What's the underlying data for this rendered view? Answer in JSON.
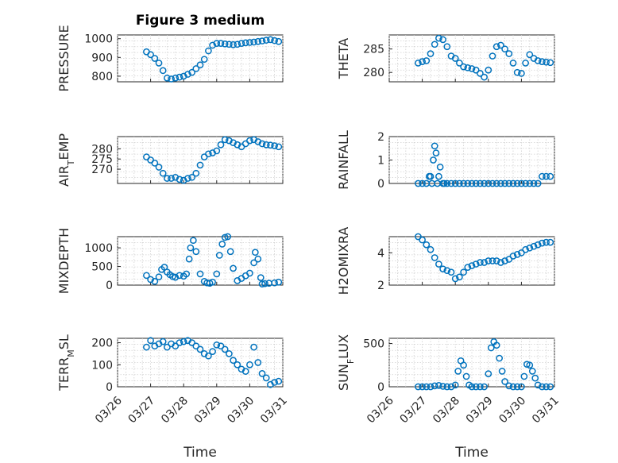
{
  "figure": {
    "title": "Figure 3 medium"
  },
  "xaxis": {
    "label": "Time",
    "ticks": [
      "03/26",
      "03/27",
      "03/28",
      "03/29",
      "03/30",
      "03/31"
    ],
    "range_days": [
      26,
      31
    ]
  },
  "colors": {
    "marker": "#0072BD",
    "grid": "#d0d0d0",
    "axes": "#262626"
  },
  "chart_data": [
    {
      "type": "scatter",
      "marker": "circle",
      "ylabel": "PRESSURE",
      "ylim": [
        770,
        1020
      ],
      "yticks": [
        800,
        900,
        1000
      ],
      "grid": true,
      "x": [
        "03/26 21:00",
        "03/27 00:00",
        "03/27 03:00",
        "03/27 06:00",
        "03/27 09:00",
        "03/27 12:00",
        "03/27 15:00",
        "03/27 18:00",
        "03/27 21:00",
        "03/28 00:00",
        "03/28 03:00",
        "03/28 06:00",
        "03/28 09:00",
        "03/28 12:00",
        "03/28 15:00",
        "03/28 18:00",
        "03/28 21:00",
        "03/29 00:00",
        "03/29 03:00",
        "03/29 06:00",
        "03/29 09:00",
        "03/29 12:00",
        "03/29 15:00",
        "03/29 18:00",
        "03/29 21:00",
        "03/30 00:00",
        "03/30 03:00",
        "03/30 06:00",
        "03/30 09:00",
        "03/30 12:00",
        "03/30 15:00",
        "03/30 18:00",
        "03/30 21:00"
      ],
      "y": [
        930,
        915,
        895,
        870,
        830,
        790,
        785,
        790,
        795,
        800,
        810,
        820,
        840,
        860,
        890,
        935,
        965,
        975,
        975,
        972,
        970,
        968,
        970,
        975,
        978,
        980,
        982,
        985,
        988,
        992,
        995,
        990,
        985
      ]
    },
    {
      "type": "scatter",
      "marker": "circle",
      "ylabel": "THETA",
      "ylim": [
        278,
        288
      ],
      "yticks": [
        280,
        285
      ],
      "grid": true,
      "x": [
        "03/26 21:00",
        "03/27 00:00",
        "03/27 03:00",
        "03/27 06:00",
        "03/27 09:00",
        "03/27 12:00",
        "03/27 15:00",
        "03/27 18:00",
        "03/27 21:00",
        "03/28 00:00",
        "03/28 03:00",
        "03/28 06:00",
        "03/28 09:00",
        "03/28 12:00",
        "03/28 15:00",
        "03/28 18:00",
        "03/28 21:00",
        "03/29 00:00",
        "03/29 03:00",
        "03/29 06:00",
        "03/29 09:00",
        "03/29 12:00",
        "03/29 15:00",
        "03/29 18:00",
        "03/29 21:00",
        "03/30 00:00",
        "03/30 03:00",
        "03/30 06:00",
        "03/30 09:00",
        "03/30 12:00",
        "03/30 15:00",
        "03/30 18:00",
        "03/30 21:00"
      ],
      "y": [
        282,
        282.3,
        282.5,
        284,
        286,
        287.3,
        287,
        285.5,
        283.5,
        283,
        282,
        281.2,
        281,
        280.8,
        280.5,
        279.8,
        279,
        280.5,
        283.5,
        285.5,
        285.8,
        285,
        284,
        282,
        280,
        279.8,
        282,
        283.8,
        283,
        282.5,
        282.3,
        282.2,
        282.1
      ]
    },
    {
      "type": "scatter",
      "marker": "circle",
      "ylabel": "AIR_TEMP",
      "ylim": [
        263,
        286
      ],
      "yticks": [
        270,
        275,
        280
      ],
      "grid": true,
      "x": [
        "03/26 21:00",
        "03/27 00:00",
        "03/27 03:00",
        "03/27 06:00",
        "03/27 09:00",
        "03/27 12:00",
        "03/27 15:00",
        "03/27 18:00",
        "03/27 21:00",
        "03/28 00:00",
        "03/28 03:00",
        "03/28 06:00",
        "03/28 09:00",
        "03/28 12:00",
        "03/28 15:00",
        "03/28 18:00",
        "03/28 21:00",
        "03/29 00:00",
        "03/29 03:00",
        "03/29 06:00",
        "03/29 09:00",
        "03/29 12:00",
        "03/29 15:00",
        "03/29 18:00",
        "03/29 21:00",
        "03/30 00:00",
        "03/30 03:00",
        "03/30 06:00",
        "03/30 09:00",
        "03/30 12:00",
        "03/30 15:00",
        "03/30 18:00",
        "03/30 21:00"
      ],
      "y": [
        276,
        274.5,
        273,
        271,
        268,
        265.5,
        265.5,
        266,
        265,
        264.5,
        265.5,
        266,
        268,
        272,
        276,
        277.5,
        278,
        279,
        282,
        284.5,
        284,
        283,
        282,
        281,
        282.5,
        284,
        284.5,
        283.5,
        282.5,
        282,
        281.8,
        281.5,
        281
      ]
    },
    {
      "type": "scatter",
      "marker": "circle",
      "ylabel": "RAINFALL",
      "ylim": [
        0,
        2
      ],
      "yticks": [
        0,
        1,
        2
      ],
      "grid": true,
      "x": [
        "03/26 21:00",
        "03/27 00:00",
        "03/27 03:00",
        "03/27 05:00",
        "03/27 06:00",
        "03/27 07:00",
        "03/27 08:00",
        "03/27 09:00",
        "03/27 10:00",
        "03/27 11:00",
        "03/27 12:00",
        "03/27 13:00",
        "03/27 15:00",
        "03/27 16:00",
        "03/27 18:00",
        "03/27 21:00",
        "03/28 00:00",
        "03/28 03:00",
        "03/28 06:00",
        "03/28 09:00",
        "03/28 12:00",
        "03/28 15:00",
        "03/28 18:00",
        "03/28 21:00",
        "03/29 00:00",
        "03/29 03:00",
        "03/29 06:00",
        "03/29 09:00",
        "03/29 12:00",
        "03/29 15:00",
        "03/29 18:00",
        "03/29 21:00",
        "03/30 00:00",
        "03/30 03:00",
        "03/30 06:00",
        "03/30 09:00",
        "03/30 12:00",
        "03/30 15:00",
        "03/30 18:00",
        "03/30 21:00"
      ],
      "y": [
        0,
        0,
        0,
        0.3,
        0.3,
        0,
        1.0,
        1.6,
        1.3,
        0,
        0.3,
        0.7,
        0,
        0,
        0,
        0,
        0,
        0,
        0,
        0,
        0,
        0,
        0,
        0,
        0,
        0,
        0,
        0,
        0,
        0,
        0,
        0,
        0,
        0,
        0,
        0,
        0,
        0.3,
        0.3,
        0.3
      ]
    },
    {
      "type": "scatter",
      "marker": "circle",
      "ylabel": "MIXDEPTH",
      "ylim": [
        0,
        1300
      ],
      "yticks": [
        0,
        500,
        1000
      ],
      "grid": true,
      "x": [
        "03/26 21:00",
        "03/27 00:00",
        "03/27 03:00",
        "03/27 06:00",
        "03/27 08:00",
        "03/27 10:00",
        "03/27 12:00",
        "03/27 14:00",
        "03/27 16:00",
        "03/27 18:00",
        "03/27 21:00",
        "03/28 00:00",
        "03/28 02:00",
        "03/28 04:00",
        "03/28 05:00",
        "03/28 07:00",
        "03/28 09:00",
        "03/28 12:00",
        "03/28 15:00",
        "03/28 17:00",
        "03/28 19:00",
        "03/28 21:00",
        "03/29 00:00",
        "03/29 02:00",
        "03/29 04:00",
        "03/29 06:00",
        "03/29 08:00",
        "03/29 10:00",
        "03/29 12:00",
        "03/29 15:00",
        "03/29 18:00",
        "03/29 21:00",
        "03/30 00:00",
        "03/30 03:00",
        "03/30 04:00",
        "03/30 06:00",
        "03/30 08:00",
        "03/30 09:00",
        "03/30 11:00",
        "03/30 14:00",
        "03/30 18:00",
        "03/30 21:00"
      ],
      "y": [
        260,
        150,
        100,
        220,
        420,
        480,
        350,
        280,
        230,
        210,
        260,
        240,
        300,
        700,
        1000,
        1200,
        900,
        300,
        100,
        60,
        50,
        80,
        300,
        800,
        1100,
        1280,
        1300,
        900,
        450,
        120,
        180,
        250,
        320,
        600,
        880,
        700,
        200,
        30,
        40,
        50,
        60,
        80
      ]
    },
    {
      "type": "scatter",
      "marker": "circle",
      "ylabel": "H2OMIXRA",
      "ylim": [
        2,
        5
      ],
      "yticks": [
        2,
        4
      ],
      "grid": true,
      "x": [
        "03/26 21:00",
        "03/27 00:00",
        "03/27 03:00",
        "03/27 06:00",
        "03/27 09:00",
        "03/27 12:00",
        "03/27 15:00",
        "03/27 18:00",
        "03/27 21:00",
        "03/28 00:00",
        "03/28 03:00",
        "03/28 06:00",
        "03/28 09:00",
        "03/28 12:00",
        "03/28 15:00",
        "03/28 18:00",
        "03/28 21:00",
        "03/29 00:00",
        "03/29 03:00",
        "03/29 06:00",
        "03/29 09:00",
        "03/29 12:00",
        "03/29 15:00",
        "03/29 18:00",
        "03/29 21:00",
        "03/30 00:00",
        "03/30 03:00",
        "03/30 06:00",
        "03/30 09:00",
        "03/30 12:00",
        "03/30 15:00",
        "03/30 18:00",
        "03/30 21:00"
      ],
      "y": [
        5.0,
        4.8,
        4.5,
        4.2,
        3.7,
        3.3,
        3.0,
        2.9,
        2.8,
        2.4,
        2.5,
        2.8,
        3.1,
        3.2,
        3.3,
        3.4,
        3.4,
        3.5,
        3.5,
        3.5,
        3.4,
        3.5,
        3.6,
        3.8,
        3.9,
        4.0,
        4.2,
        4.3,
        4.4,
        4.5,
        4.6,
        4.65,
        4.65
      ]
    },
    {
      "type": "scatter",
      "marker": "circle",
      "ylabel": "TERR_MSL",
      "ylim": [
        0,
        220
      ],
      "yticks": [
        0,
        100,
        200
      ],
      "grid": true,
      "x": [
        "03/26 21:00",
        "03/27 00:00",
        "03/27 03:00",
        "03/27 06:00",
        "03/27 09:00",
        "03/27 12:00",
        "03/27 15:00",
        "03/27 18:00",
        "03/27 21:00",
        "03/28 00:00",
        "03/28 03:00",
        "03/28 06:00",
        "03/28 09:00",
        "03/28 12:00",
        "03/28 15:00",
        "03/28 18:00",
        "03/28 21:00",
        "03/29 00:00",
        "03/29 03:00",
        "03/29 06:00",
        "03/29 09:00",
        "03/29 12:00",
        "03/29 15:00",
        "03/29 18:00",
        "03/29 21:00",
        "03/30 00:00",
        "03/30 03:00",
        "03/30 06:00",
        "03/30 09:00",
        "03/30 12:00",
        "03/30 15:00",
        "03/30 18:00",
        "03/30 21:00"
      ],
      "y": [
        180,
        210,
        185,
        195,
        205,
        180,
        195,
        185,
        200,
        205,
        210,
        200,
        185,
        170,
        150,
        140,
        160,
        190,
        185,
        170,
        150,
        120,
        100,
        80,
        70,
        100,
        180,
        110,
        60,
        40,
        10,
        20,
        25
      ]
    },
    {
      "type": "scatter",
      "marker": "circle",
      "ylabel": "SUN_FLUX",
      "ylim": [
        0,
        560
      ],
      "yticks": [
        0,
        500
      ],
      "grid": true,
      "x": [
        "03/26 21:00",
        "03/27 00:00",
        "03/27 03:00",
        "03/27 06:00",
        "03/27 09:00",
        "03/27 12:00",
        "03/27 15:00",
        "03/27 18:00",
        "03/27 21:00",
        "03/28 00:00",
        "03/28 02:00",
        "03/28 04:00",
        "03/28 06:00",
        "03/28 08:00",
        "03/28 10:00",
        "03/28 12:00",
        "03/28 15:00",
        "03/28 18:00",
        "03/28 21:00",
        "03/29 00:00",
        "03/29 02:00",
        "03/29 04:00",
        "03/29 06:00",
        "03/29 08:00",
        "03/29 10:00",
        "03/29 12:00",
        "03/29 15:00",
        "03/29 18:00",
        "03/29 21:00",
        "03/30 00:00",
        "03/30 02:00",
        "03/30 04:00",
        "03/30 06:00",
        "03/30 08:00",
        "03/30 10:00",
        "03/30 12:00",
        "03/30 15:00",
        "03/30 18:00",
        "03/30 21:00"
      ],
      "y": [
        0,
        0,
        0,
        0,
        10,
        15,
        5,
        0,
        0,
        20,
        180,
        300,
        250,
        120,
        20,
        0,
        0,
        0,
        0,
        150,
        450,
        520,
        480,
        330,
        180,
        60,
        10,
        0,
        0,
        0,
        120,
        260,
        250,
        180,
        100,
        20,
        0,
        0,
        0
      ]
    }
  ]
}
